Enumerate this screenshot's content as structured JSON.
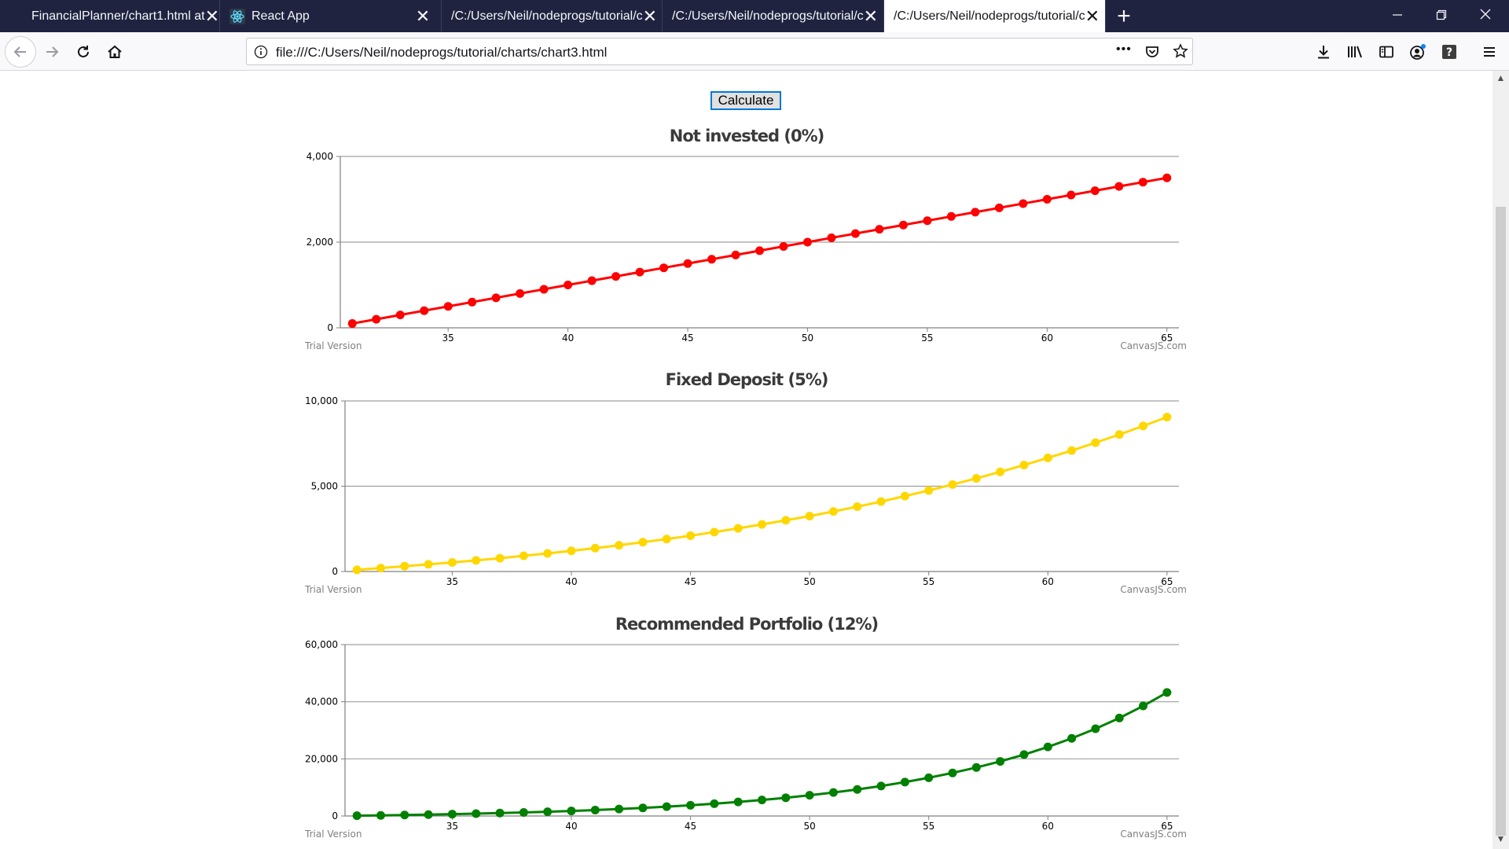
{
  "browser": {
    "tabs": [
      {
        "title": "FinancialPlanner/chart1.html at",
        "active": false
      },
      {
        "title": "React App",
        "active": false
      },
      {
        "title": "/C:/Users/Neil/nodeprogs/tutorial/c",
        "active": false
      },
      {
        "title": "/C:/Users/Neil/nodeprogs/tutorial/c",
        "active": false
      },
      {
        "title": "/C:/Users/Neil/nodeprogs/tutorial/c",
        "active": true
      }
    ],
    "url": "file:///C:/Users/Neil/nodeprogs/tutorial/charts/chart3.html",
    "tab_close_glyph": "✕",
    "new_tab_glyph": "+",
    "page_actions_glyph": "•••"
  },
  "page": {
    "calculate_label": "Calculate"
  },
  "chart_data": [
    {
      "type": "line",
      "title": "Not invested (0%)",
      "color": "#ff0000",
      "x": [
        31,
        32,
        33,
        34,
        35,
        36,
        37,
        38,
        39,
        40,
        41,
        42,
        43,
        44,
        45,
        46,
        47,
        48,
        49,
        50,
        51,
        52,
        53,
        54,
        55,
        56,
        57,
        58,
        59,
        60,
        61,
        62,
        63,
        64,
        65
      ],
      "values": [
        100,
        200,
        300,
        400,
        500,
        600,
        700,
        800,
        900,
        1000,
        1100,
        1200,
        1300,
        1400,
        1500,
        1600,
        1700,
        1800,
        1900,
        2000,
        2100,
        2200,
        2300,
        2400,
        2500,
        2600,
        2700,
        2800,
        2900,
        3000,
        3100,
        3200,
        3300,
        3400,
        3500
      ],
      "ylim": [
        0,
        4000
      ],
      "yticks": [
        0,
        2000,
        4000
      ],
      "ytick_labels": [
        "0",
        "2,000",
        "4,000"
      ],
      "xticks": [
        35,
        40,
        45,
        50,
        55,
        60,
        65
      ],
      "grid": true,
      "credit_left": "Trial Version",
      "credit_right": "CanvasJS.com"
    },
    {
      "type": "line",
      "title": "Fixed Deposit (5%)",
      "color": "#ffd700",
      "x": [
        31,
        32,
        33,
        34,
        35,
        36,
        37,
        38,
        39,
        40,
        41,
        42,
        43,
        44,
        45,
        46,
        47,
        48,
        49,
        50,
        51,
        52,
        53,
        54,
        55,
        56,
        57,
        58,
        59,
        60,
        61,
        62,
        63,
        64,
        65
      ],
      "values": [
        100,
        200,
        310,
        420,
        530,
        650,
        780,
        920,
        1060,
        1210,
        1370,
        1540,
        1720,
        1900,
        2100,
        2310,
        2530,
        2760,
        3000,
        3250,
        3520,
        3800,
        4100,
        4420,
        4750,
        5100,
        5460,
        5840,
        6240,
        6660,
        7090,
        7550,
        8030,
        8530,
        9050
      ],
      "ylim": [
        0,
        10000
      ],
      "yticks": [
        0,
        5000,
        10000
      ],
      "ytick_labels": [
        "0",
        "5,000",
        "10,000"
      ],
      "xticks": [
        35,
        40,
        45,
        50,
        55,
        60,
        65
      ],
      "grid": true,
      "credit_left": "Trial Version",
      "credit_right": "CanvasJS.com"
    },
    {
      "type": "line",
      "title": "Recommended Portfolio (12%)",
      "color": "#008000",
      "x": [
        31,
        32,
        33,
        34,
        35,
        36,
        37,
        38,
        39,
        40,
        41,
        42,
        43,
        44,
        45,
        46,
        47,
        48,
        49,
        50,
        51,
        52,
        53,
        54,
        55,
        56,
        57,
        58,
        59,
        60,
        61,
        62,
        63,
        64,
        65
      ],
      "values": [
        100,
        210,
        340,
        480,
        640,
        820,
        1020,
        1240,
        1490,
        1770,
        2080,
        2430,
        2820,
        3260,
        3750,
        4300,
        4920,
        5610,
        6380,
        7250,
        8210,
        9300,
        10500,
        11860,
        13380,
        15080,
        16980,
        19110,
        21500,
        24180,
        27180,
        30540,
        34300,
        38520,
        43240
      ],
      "ylim": [
        0,
        60000
      ],
      "yticks": [
        0,
        20000,
        40000,
        60000
      ],
      "ytick_labels": [
        "0",
        "20,000",
        "40,000",
        "60,000"
      ],
      "xticks": [
        35,
        40,
        45,
        50,
        55,
        60,
        65
      ],
      "grid": true,
      "credit_left": "Trial Version",
      "credit_right": "CanvasJS.com"
    }
  ]
}
